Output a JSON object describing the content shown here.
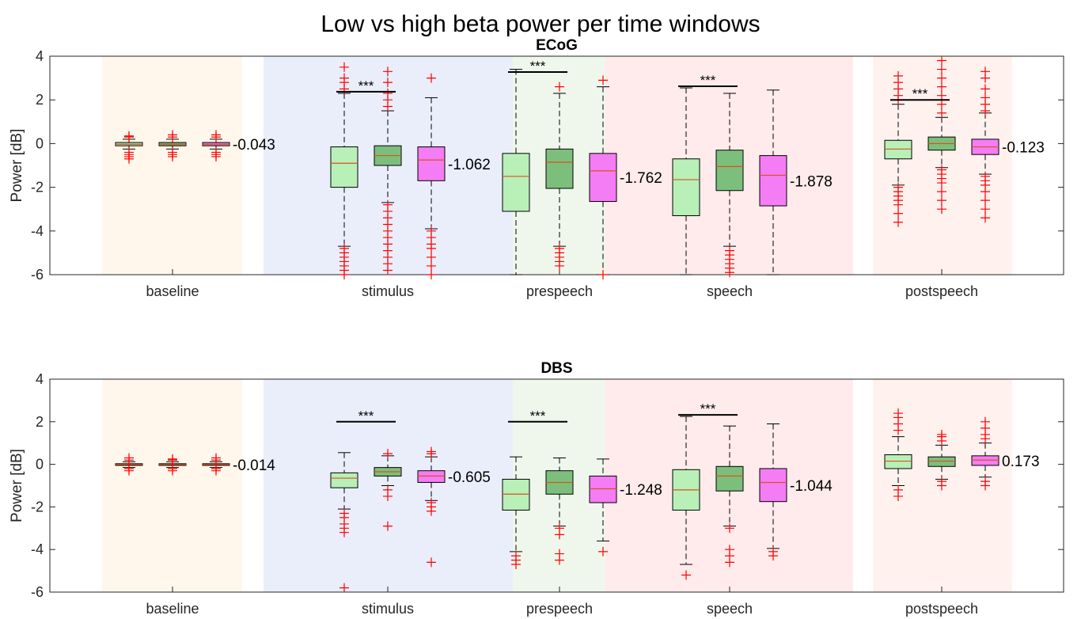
{
  "figure": {
    "title": "Low vs high beta power per time windows"
  },
  "colors": {
    "window_bg": [
      "#fff7ec",
      "#eaeefb",
      "#eff7ec",
      "#ffebeb",
      "#fff1ee"
    ],
    "box_low": "#b8f0b8",
    "box_mid": "#7cbf7c",
    "box_high": "#f47cf4",
    "median": "#d9531e",
    "outlier": "#ff0000"
  },
  "chart_data": [
    {
      "type": "box",
      "title": "ECoG",
      "ylabel": "Power [dB]",
      "ylim": [
        -6,
        4
      ],
      "yticks": [
        "4",
        "2",
        "0",
        "-2",
        "-4",
        "-6"
      ],
      "categories": [
        "baseline",
        "stimulus",
        "prespeech",
        "speech",
        "postspeech"
      ],
      "annotations": [
        "-0.043",
        "-1.062",
        "-1.762",
        "-1.878",
        "-0.123"
      ],
      "significance": [
        "",
        "***",
        "***",
        "***",
        "***"
      ],
      "boxes": [
        [
          {
            "q1": -0.1,
            "med": -0.03,
            "q3": 0.05,
            "wl": -0.25,
            "wh": 0.2,
            "out": [
              -0.4,
              -0.5,
              -0.6,
              -0.7,
              0.3,
              0.35
            ]
          },
          {
            "q1": -0.1,
            "med": -0.03,
            "q3": 0.05,
            "wl": -0.25,
            "wh": 0.2,
            "out": [
              -0.4,
              -0.5,
              -0.6,
              0.3,
              0.4
            ]
          },
          {
            "q1": -0.1,
            "med": -0.03,
            "q3": 0.05,
            "wl": -0.25,
            "wh": 0.2,
            "out": [
              -0.4,
              -0.5,
              -0.6,
              0.3,
              0.4
            ]
          }
        ],
        [
          {
            "q1": -2.0,
            "med": -0.9,
            "q3": -0.15,
            "wl": -4.7,
            "wh": 2.3,
            "out": [
              -4.8,
              -5.0,
              -5.2,
              -5.4,
              -5.6,
              -5.8,
              -6.0,
              2.5,
              2.8,
              3.0,
              3.5
            ]
          },
          {
            "q1": -1.0,
            "med": -0.55,
            "q3": -0.1,
            "wl": -2.7,
            "wh": 1.5,
            "out": [
              -2.8,
              -3.1,
              -3.4,
              -3.7,
              -4.0,
              -4.3,
              -4.6,
              -4.9,
              -5.2,
              -5.5,
              -5.8,
              1.7,
              2.0,
              2.3,
              2.8,
              3.3
            ]
          },
          {
            "q1": -1.7,
            "med": -0.75,
            "q3": -0.15,
            "wl": -3.9,
            "wh": 2.1,
            "out": [
              -4.0,
              -4.3,
              -4.6,
              -4.8,
              -5.2,
              -5.6,
              -6.0,
              3.0
            ]
          }
        ],
        [
          {
            "q1": -3.1,
            "med": -1.5,
            "q3": -0.45,
            "wl": -6.0,
            "wh": 3.4,
            "out": []
          },
          {
            "q1": -2.05,
            "med": -0.85,
            "q3": -0.25,
            "wl": -4.7,
            "wh": 2.3,
            "out": [
              -4.8,
              -5.0,
              -5.2,
              -5.4,
              -5.6,
              2.6
            ]
          },
          {
            "q1": -2.65,
            "med": -1.25,
            "q3": -0.45,
            "wl": -6.0,
            "wh": 2.6,
            "out": [
              -6.0,
              2.9
            ]
          }
        ],
        [
          {
            "q1": -3.3,
            "med": -1.65,
            "q3": -0.7,
            "wl": -6.0,
            "wh": 2.55,
            "out": []
          },
          {
            "q1": -2.15,
            "med": -1.05,
            "q3": -0.3,
            "wl": -4.7,
            "wh": 2.3,
            "out": [
              -4.9,
              -5.1,
              -5.3,
              -5.5,
              -5.7,
              -5.9
            ]
          },
          {
            "q1": -2.85,
            "med": -1.45,
            "q3": -0.55,
            "wl": -6.0,
            "wh": 2.45,
            "out": []
          }
        ],
        [
          {
            "q1": -0.7,
            "med": -0.25,
            "q3": 0.15,
            "wl": -1.9,
            "wh": 1.8,
            "out": [
              -2.0,
              -2.2,
              -2.4,
              -2.6,
              -2.8,
              -3.2,
              -3.6,
              2.0,
              2.2,
              2.5,
              2.8,
              3.1
            ]
          },
          {
            "q1": -0.3,
            "med": 0.0,
            "q3": 0.3,
            "wl": -1.1,
            "wh": 1.2,
            "out": [
              -1.2,
              -1.4,
              -1.6,
              -1.8,
              -2.2,
              -2.6,
              -3.0,
              1.4,
              1.8,
              2.2,
              2.6,
              3.0,
              3.4,
              3.8
            ]
          },
          {
            "q1": -0.5,
            "med": -0.15,
            "q3": 0.2,
            "wl": -1.4,
            "wh": 1.4,
            "out": [
              -1.5,
              -1.7,
              -1.9,
              -2.2,
              -2.6,
              -3.0,
              -3.4,
              1.5,
              1.8,
              2.1,
              2.5,
              3.0,
              3.3
            ]
          }
        ]
      ]
    },
    {
      "type": "box",
      "title": "DBS",
      "ylabel": "Power [dB]",
      "ylim": [
        -6,
        4
      ],
      "yticks": [
        "4",
        "2",
        "0",
        "-2",
        "-4",
        "-6"
      ],
      "categories": [
        "baseline",
        "stimulus",
        "prespeech",
        "speech",
        "postspeech"
      ],
      "annotations": [
        "-0.014",
        "-0.605",
        "-1.248",
        "-1.044",
        "0.173"
      ],
      "significance": [
        "",
        "***",
        "***",
        "***",
        ""
      ],
      "boxes": [
        [
          {
            "q1": -0.05,
            "med": -0.01,
            "q3": 0.03,
            "wl": -0.15,
            "wh": 0.12,
            "out": [
              -0.2,
              -0.3,
              0.2,
              0.3
            ]
          },
          {
            "q1": -0.05,
            "med": -0.01,
            "q3": 0.03,
            "wl": -0.15,
            "wh": 0.12,
            "out": [
              -0.2,
              -0.3,
              0.2,
              0.25
            ]
          },
          {
            "q1": -0.05,
            "med": -0.01,
            "q3": 0.03,
            "wl": -0.15,
            "wh": 0.12,
            "out": [
              -0.2,
              -0.3,
              0.2,
              0.3
            ]
          }
        ],
        [
          {
            "q1": -1.1,
            "med": -0.65,
            "q3": -0.4,
            "wl": -2.1,
            "wh": 0.55,
            "out": [
              -2.3,
              -2.5,
              -2.8,
              -3.0,
              -3.2,
              -5.8
            ]
          },
          {
            "q1": -0.55,
            "med": -0.35,
            "q3": -0.15,
            "wl": -1.0,
            "wh": 0.4,
            "out": [
              -1.2,
              -1.5,
              -2.9,
              0.5
            ]
          },
          {
            "q1": -0.85,
            "med": -0.55,
            "q3": -0.3,
            "wl": -1.7,
            "wh": 0.35,
            "out": [
              -1.8,
              -2.0,
              -2.2,
              -4.6,
              0.5,
              0.6
            ]
          }
        ],
        [
          {
            "q1": -2.15,
            "med": -1.4,
            "q3": -0.7,
            "wl": -4.1,
            "wh": 0.35,
            "out": [
              -4.3,
              -4.5,
              -4.7
            ]
          },
          {
            "q1": -1.4,
            "med": -0.85,
            "q3": -0.3,
            "wl": -2.9,
            "wh": 0.3,
            "out": [
              -3.0,
              -3.3,
              -4.2,
              -4.5
            ]
          },
          {
            "q1": -1.8,
            "med": -1.15,
            "q3": -0.55,
            "wl": -3.6,
            "wh": 0.25,
            "out": [
              -4.1
            ]
          }
        ],
        [
          {
            "q1": -2.15,
            "med": -1.2,
            "q3": -0.25,
            "wl": -4.7,
            "wh": 2.25,
            "out": [
              -5.2
            ]
          },
          {
            "q1": -1.25,
            "med": -0.55,
            "q3": -0.1,
            "wl": -2.9,
            "wh": 1.8,
            "out": [
              -3.0,
              -4.0,
              -4.3,
              -4.6
            ]
          },
          {
            "q1": -1.75,
            "med": -0.85,
            "q3": -0.2,
            "wl": -3.95,
            "wh": 1.9,
            "out": [
              -4.1,
              -4.3
            ]
          }
        ],
        [
          {
            "q1": -0.2,
            "med": 0.15,
            "q3": 0.45,
            "wl": -1.0,
            "wh": 1.3,
            "out": [
              -1.2,
              -1.5,
              1.6,
              1.9,
              2.2,
              2.4
            ]
          },
          {
            "q1": -0.1,
            "med": 0.15,
            "q3": 0.35,
            "wl": -0.7,
            "wh": 0.9,
            "out": [
              -0.8,
              -1.0,
              1.1,
              1.3,
              1.4
            ]
          },
          {
            "q1": -0.05,
            "med": 0.2,
            "q3": 0.4,
            "wl": -0.6,
            "wh": 1.0,
            "out": [
              -0.8,
              -1.0,
              1.2,
              1.4,
              1.7,
              2.0
            ]
          }
        ]
      ]
    }
  ]
}
